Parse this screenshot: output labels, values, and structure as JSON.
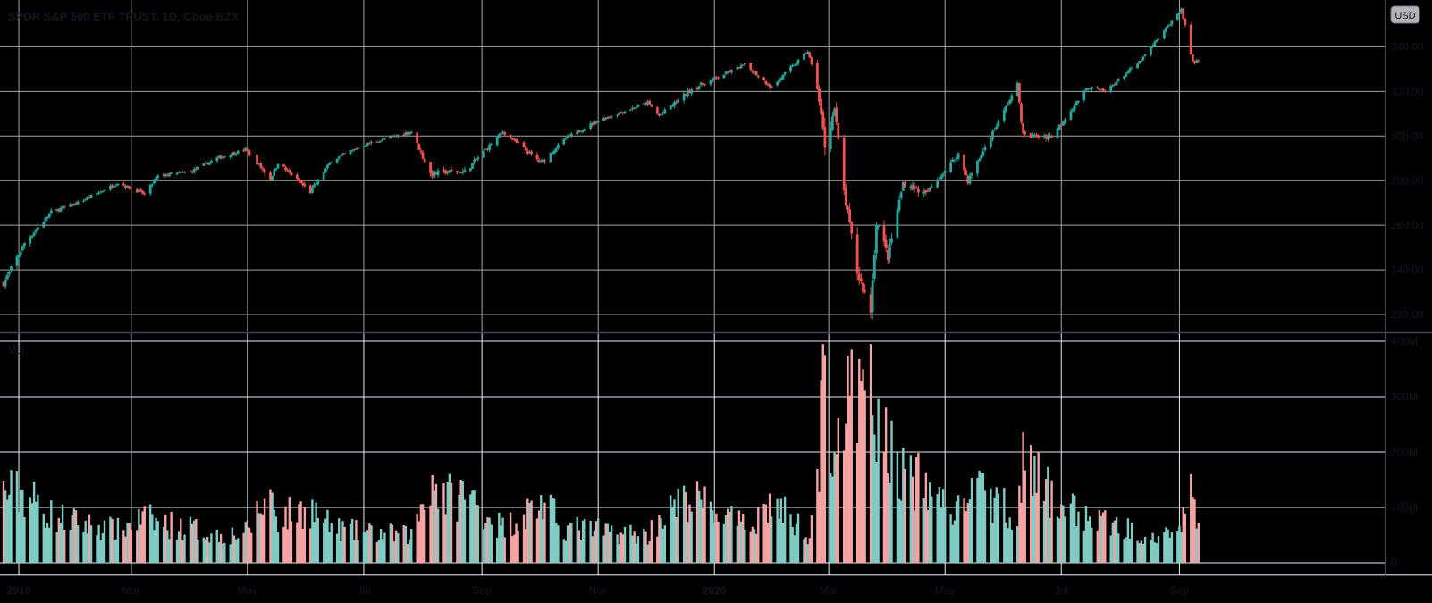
{
  "header": {
    "symbol_title": "SPDR S&P 500 ETF TRUST, 1D, Cboe BZX",
    "currency": "USD",
    "top_price_label": "3"
  },
  "colors": {
    "up": "#26a69a",
    "down": "#ef5350",
    "price_background": "#b2b2b2",
    "volume_background": "#ffffff",
    "grid_price": "#a4a4a4",
    "grid_volume": "#e3edf4",
    "up_volume": "#80cbc4",
    "down_volume": "#f5a3a3"
  },
  "chart_data": {
    "type": "candlestick",
    "price_axis": {
      "ticks": [
        220,
        240,
        260,
        280,
        300,
        320,
        340
      ],
      "tick_labels": [
        "220.00",
        "240.00",
        "260.00",
        "280.00",
        "300.00",
        "320.00",
        "340.00"
      ],
      "range": [
        212,
        361
      ]
    },
    "volume_panel": {
      "label": "Vol",
      "ticks": [
        0,
        100,
        200,
        300,
        400
      ],
      "tick_labels": [
        "0",
        "100M",
        "200M",
        "300M",
        "400M"
      ],
      "range": [
        0,
        405
      ]
    },
    "time_axis": {
      "labels": [
        "2019",
        "Mar",
        "May",
        "Jul",
        "Sep",
        "Nov",
        "2020",
        "Mar",
        "May",
        "Jul",
        "Sep"
      ],
      "bold": [
        true,
        false,
        false,
        false,
        false,
        false,
        true,
        false,
        false,
        false,
        false
      ],
      "dates": [
        "2019-01-01",
        "2019-03-01",
        "2019-05-01",
        "2019-07-01",
        "2019-09-01",
        "2019-11-01",
        "2020-01-01",
        "2020-03-01",
        "2020-05-01",
        "2020-07-01",
        "2020-09-01"
      ]
    },
    "close_anchors": [
      [
        "2018-12-24",
        234,
        140
      ],
      [
        "2019-01-04",
        252,
        140
      ],
      [
        "2019-01-18",
        266,
        95
      ],
      [
        "2019-02-01",
        270,
        80
      ],
      [
        "2019-02-22",
        279,
        65
      ],
      [
        "2019-03-08",
        274,
        90
      ],
      [
        "2019-03-15",
        282,
        80
      ],
      [
        "2019-04-01",
        284,
        70
      ],
      [
        "2019-04-15",
        290,
        55
      ],
      [
        "2019-04-30",
        294,
        60
      ],
      [
        "2019-05-13",
        281,
        140
      ],
      [
        "2019-05-17",
        288,
        90
      ],
      [
        "2019-06-03",
        275,
        110
      ],
      [
        "2019-06-14",
        289,
        70
      ],
      [
        "2019-07-01",
        296,
        60
      ],
      [
        "2019-07-26",
        302,
        55
      ],
      [
        "2019-08-05",
        283,
        170
      ],
      [
        "2019-08-14",
        284,
        130
      ],
      [
        "2019-08-23",
        284,
        140
      ],
      [
        "2019-09-12",
        302,
        70
      ],
      [
        "2019-10-02",
        288,
        120
      ],
      [
        "2019-10-15",
        299,
        70
      ],
      [
        "2019-11-01",
        307,
        65
      ],
      [
        "2019-11-27",
        315,
        55
      ],
      [
        "2019-12-03",
        309,
        90
      ],
      [
        "2019-12-20",
        321,
        130
      ],
      [
        "2020-01-17",
        332,
        70
      ],
      [
        "2020-01-31",
        322,
        120
      ],
      [
        "2020-02-19",
        338,
        60
      ],
      [
        "2020-02-24",
        322,
        160
      ],
      [
        "2020-02-28",
        296,
        380
      ],
      [
        "2020-03-04",
        312,
        240
      ],
      [
        "2020-03-09",
        275,
        300
      ],
      [
        "2020-03-16",
        239,
        320
      ],
      [
        "2020-03-23",
        222,
        340
      ],
      [
        "2020-03-26",
        262,
        280
      ],
      [
        "2020-04-01",
        246,
        230
      ],
      [
        "2020-04-09",
        279,
        180
      ],
      [
        "2020-04-21",
        274,
        150
      ],
      [
        "2020-05-08",
        292,
        100
      ],
      [
        "2020-05-13",
        280,
        150
      ],
      [
        "2020-06-08",
        323,
        100
      ],
      [
        "2020-06-11",
        300,
        200
      ],
      [
        "2020-06-26",
        300,
        130
      ],
      [
        "2020-07-15",
        322,
        90
      ],
      [
        "2020-07-24",
        320,
        80
      ],
      [
        "2020-08-12",
        334,
        60
      ],
      [
        "2020-09-02",
        357,
        70
      ],
      [
        "2020-09-08",
        333,
        140
      ],
      [
        "2020-09-11",
        334,
        90
      ]
    ]
  }
}
